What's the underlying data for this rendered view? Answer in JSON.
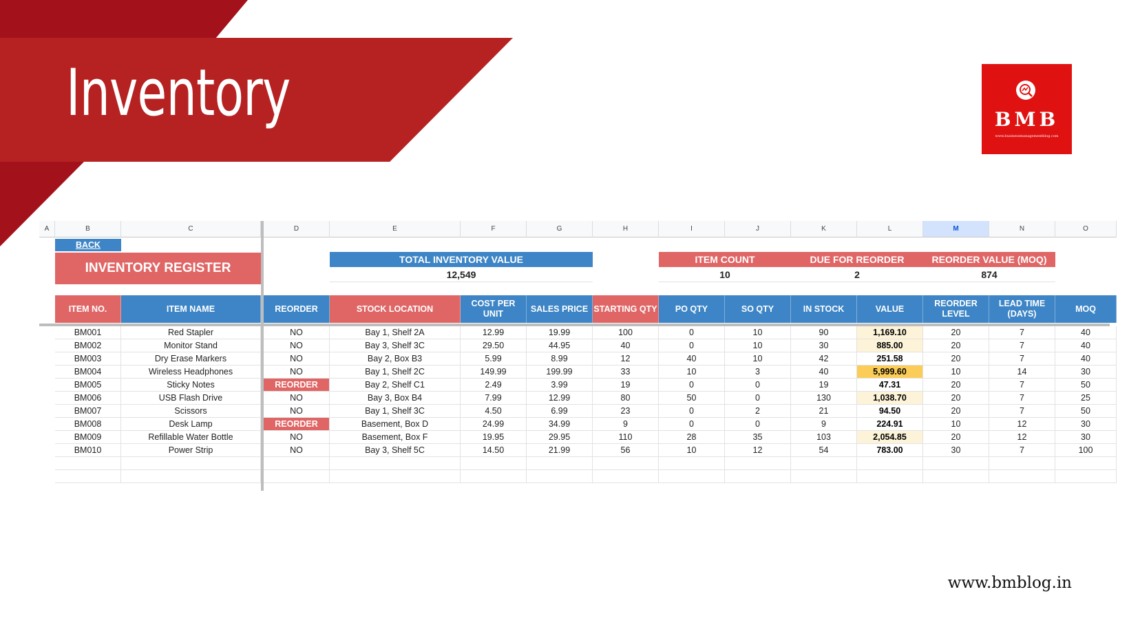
{
  "slide": {
    "title": "Inventory",
    "website": "www.bmblog.in"
  },
  "logo": {
    "text": "BMB",
    "url": "www.businessmanagementblog.com",
    "color": "#e01111"
  },
  "sheet": {
    "column_letters": [
      "A",
      "B",
      "C",
      "D",
      "E",
      "F",
      "G",
      "H",
      "I",
      "J",
      "K",
      "L",
      "M",
      "N",
      "O"
    ],
    "selected_column": "M",
    "back_link": "BACK",
    "register_title": "INVENTORY REGISTER",
    "summary": {
      "total_inventory_value_label": "TOTAL INVENTORY VALUE",
      "total_inventory_value": "12,549",
      "item_count_label": "ITEM COUNT",
      "item_count": "10",
      "due_for_reorder_label": "DUE FOR REORDER",
      "due_for_reorder": "2",
      "reorder_value_label": "REORDER VALUE (MOQ)",
      "reorder_value": "874"
    },
    "headers": [
      {
        "label": "ITEM NO.",
        "style": "red"
      },
      {
        "label": "ITEM NAME",
        "style": "blue"
      },
      {
        "label": "REORDER",
        "style": "blue"
      },
      {
        "label": "STOCK LOCATION",
        "style": "red"
      },
      {
        "label": "COST PER UNIT",
        "style": "blue"
      },
      {
        "label": "SALES PRICE",
        "style": "blue"
      },
      {
        "label": "STARTING QTY",
        "style": "red"
      },
      {
        "label": "PO QTY",
        "style": "blue"
      },
      {
        "label": "SO QTY",
        "style": "blue"
      },
      {
        "label": "IN STOCK",
        "style": "blue"
      },
      {
        "label": "VALUE",
        "style": "blue"
      },
      {
        "label": "REORDER LEVEL",
        "style": "blue"
      },
      {
        "label": "LEAD TIME (DAYS)",
        "style": "blue"
      },
      {
        "label": "MOQ",
        "style": "blue"
      }
    ],
    "rows": [
      [
        "BM001",
        "Red Stapler",
        "NO",
        "Bay 1, Shelf 2A",
        "12.99",
        "19.99",
        "100",
        "0",
        "10",
        "90",
        "1,169.10",
        "20",
        "7",
        "40"
      ],
      [
        "BM002",
        "Monitor Stand",
        "NO",
        "Bay 3, Shelf 3C",
        "29.50",
        "44.95",
        "40",
        "0",
        "10",
        "30",
        "885.00",
        "20",
        "7",
        "40"
      ],
      [
        "BM003",
        "Dry Erase Markers",
        "NO",
        "Bay 2, Box B3",
        "5.99",
        "8.99",
        "12",
        "40",
        "10",
        "42",
        "251.58",
        "20",
        "7",
        "40"
      ],
      [
        "BM004",
        "Wireless Headphones",
        "NO",
        "Bay 1, Shelf 2C",
        "149.99",
        "199.99",
        "33",
        "10",
        "3",
        "40",
        "5,999.60",
        "10",
        "14",
        "30"
      ],
      [
        "BM005",
        "Sticky Notes",
        "REORDER",
        "Bay 2, Shelf C1",
        "2.49",
        "3.99",
        "19",
        "0",
        "0",
        "19",
        "47.31",
        "20",
        "7",
        "50"
      ],
      [
        "BM006",
        "USB Flash Drive",
        "NO",
        "Bay 3, Box B4",
        "7.99",
        "12.99",
        "80",
        "50",
        "0",
        "130",
        "1,038.70",
        "20",
        "7",
        "25"
      ],
      [
        "BM007",
        "Scissors",
        "NO",
        "Bay 1, Shelf 3C",
        "4.50",
        "6.99",
        "23",
        "0",
        "2",
        "21",
        "94.50",
        "20",
        "7",
        "50"
      ],
      [
        "BM008",
        "Desk Lamp",
        "REORDER",
        "Basement, Box D",
        "24.99",
        "34.99",
        "9",
        "0",
        "0",
        "9",
        "224.91",
        "10",
        "12",
        "30"
      ],
      [
        "BM009",
        "Refillable Water Bottle",
        "NO",
        "Basement, Box F",
        "19.95",
        "29.95",
        "110",
        "28",
        "35",
        "103",
        "2,054.85",
        "20",
        "12",
        "30"
      ],
      [
        "BM010",
        "Power Strip",
        "NO",
        "Bay 3, Shelf 5C",
        "14.50",
        "21.99",
        "56",
        "10",
        "12",
        "54",
        "783.00",
        "30",
        "7",
        "100"
      ]
    ],
    "colors": {
      "header_red": "#e06666",
      "header_blue": "#3d85c6",
      "reorder_flag": "#e06666",
      "value_highlight_light": "#fdf3d8",
      "value_highlight_dark": "#fbcd58",
      "banner_red": "#b52221"
    }
  }
}
